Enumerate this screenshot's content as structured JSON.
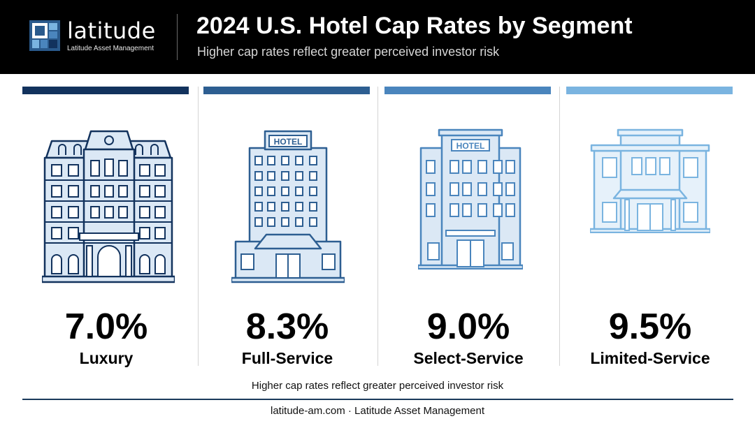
{
  "header": {
    "logo_word": "latitude",
    "logo_sub": "Latitude Asset Management",
    "title": "2024 U.S. Hotel Cap Rates by Segment",
    "subtitle": "Higher cap rates reflect greater perceived investor risk"
  },
  "colors": {
    "luxury": "#12325d",
    "full_service": "#2d5e91",
    "select_service": "#4a85bd",
    "limited_service": "#7ab4e0"
  },
  "icons": [
    "luxury-hotel-icon",
    "full-service-hotel-icon",
    "select-service-hotel-icon",
    "limited-service-hotel-icon"
  ],
  "chart_data": {
    "type": "table",
    "categories": [
      "Luxury",
      "Full-Service",
      "Select-Service",
      "Limited-Service"
    ],
    "values": [
      7.0,
      8.3,
      9.0,
      9.5
    ],
    "value_labels": [
      "7.0%",
      "8.3%",
      "9.0%",
      "9.5%"
    ],
    "unit": "%",
    "sign_text": [
      "HOTEL",
      "HOTEL"
    ]
  },
  "footnote": "Higher cap rates reflect greater perceived investor risk",
  "footer": "latitude-am.com · Latitude Asset Management"
}
